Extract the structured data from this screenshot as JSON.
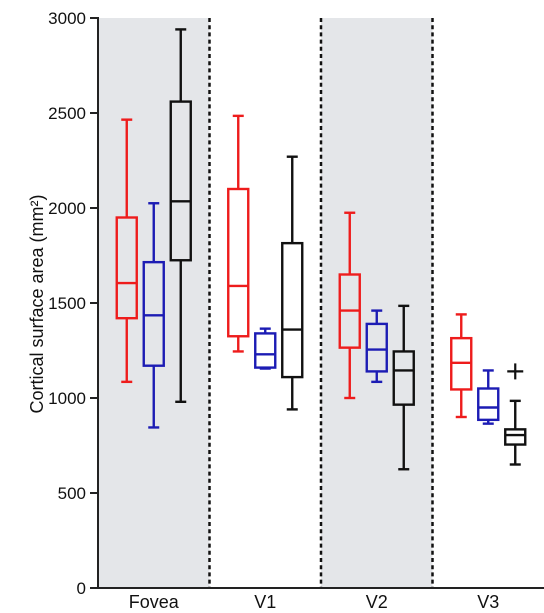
{
  "chart_data": {
    "type": "box",
    "title": "",
    "xlabel": "",
    "ylabel": "Cortical surface area (mm²)",
    "ylim": [
      0,
      3000
    ],
    "yticks": [
      0,
      500,
      1000,
      1500,
      2000,
      2500,
      3000
    ],
    "grid": false,
    "shaded_categories": [
      "Fovea",
      "V2"
    ],
    "colors": {
      "series1": "#ee1c1c",
      "series2": "#1c1cb4",
      "series3": "#111111",
      "shade": "#e4e6e9",
      "axis": "#222222"
    },
    "categories": [
      {
        "label": "Fovea",
        "boxes": [
          {
            "color": "#ee1c1c",
            "min": 1085,
            "q1": 1420,
            "median": 1605,
            "q3": 1950,
            "max": 2465
          },
          {
            "color": "#1c1cb4",
            "min": 845,
            "q1": 1170,
            "median": 1435,
            "q3": 1715,
            "max": 2025
          },
          {
            "color": "#111111",
            "min": 980,
            "q1": 1725,
            "median": 2035,
            "q3": 2560,
            "max": 2940
          }
        ]
      },
      {
        "label": "V1",
        "boxes": [
          {
            "color": "#ee1c1c",
            "min": 1245,
            "q1": 1325,
            "median": 1590,
            "q3": 2100,
            "max": 2485
          },
          {
            "color": "#1c1cb4",
            "min": 1155,
            "q1": 1160,
            "median": 1230,
            "q3": 1340,
            "max": 1365
          },
          {
            "color": "#111111",
            "min": 940,
            "q1": 1110,
            "median": 1360,
            "q3": 1815,
            "max": 2270
          }
        ]
      },
      {
        "label": "V2",
        "boxes": [
          {
            "color": "#ee1c1c",
            "min": 1000,
            "q1": 1265,
            "median": 1460,
            "q3": 1650,
            "max": 1975
          },
          {
            "color": "#1c1cb4",
            "min": 1085,
            "q1": 1140,
            "median": 1255,
            "q3": 1390,
            "max": 1460
          },
          {
            "color": "#111111",
            "min": 625,
            "q1": 965,
            "median": 1145,
            "q3": 1245,
            "max": 1485
          }
        ]
      },
      {
        "label": "V3",
        "boxes": [
          {
            "color": "#ee1c1c",
            "min": 900,
            "q1": 1045,
            "median": 1185,
            "q3": 1315,
            "max": 1440
          },
          {
            "color": "#1c1cb4",
            "min": 865,
            "q1": 885,
            "median": 950,
            "q3": 1050,
            "max": 1145
          },
          {
            "color": "#111111",
            "min": 650,
            "q1": 755,
            "median": 805,
            "q3": 835,
            "max": 985,
            "outliers": [
              1140
            ]
          }
        ]
      }
    ]
  }
}
